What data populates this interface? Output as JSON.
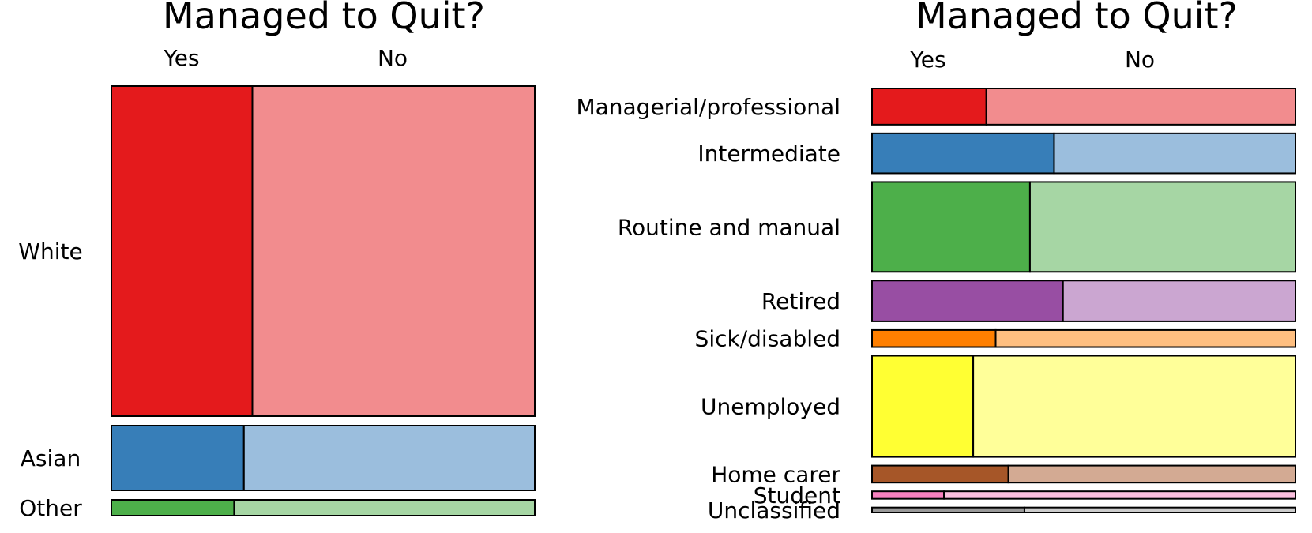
{
  "chart_data": [
    {
      "type": "mosaic",
      "title": "Managed to Quit?",
      "columns": [
        "Yes",
        "No"
      ],
      "rows": [
        {
          "label": "White",
          "share": 0.836,
          "yes_fraction": 0.333,
          "colors": [
            "#e41a1c",
            "#f28c8e"
          ]
        },
        {
          "label": "Asian",
          "share": 0.164,
          "yes_fraction": 0.313,
          "colors": [
            "#377eb8",
            "#9bbedd"
          ]
        },
        {
          "label": "Other",
          "share": 0.04,
          "yes_fraction": 0.29,
          "colors": [
            "#4daf4a",
            "#a6d6a4"
          ]
        }
      ]
    },
    {
      "type": "mosaic",
      "title": "Managed to Quit?",
      "columns": [
        "Yes",
        "No"
      ],
      "rows": [
        {
          "label": "Managerial/professional",
          "share": 0.087,
          "yes_fraction": 0.27,
          "colors": [
            "#e41a1c",
            "#f28c8e"
          ]
        },
        {
          "label": "Intermediate",
          "share": 0.096,
          "yes_fraction": 0.43,
          "colors": [
            "#377eb8",
            "#9bbedd"
          ]
        },
        {
          "label": "Routine and manual",
          "share": 0.216,
          "yes_fraction": 0.373,
          "colors": [
            "#4daf4a",
            "#a6d6a4"
          ]
        },
        {
          "label": "Retired",
          "share": 0.098,
          "yes_fraction": 0.451,
          "colors": [
            "#984ea3",
            "#cba6d1"
          ]
        },
        {
          "label": "Sick/disabled",
          "share": 0.041,
          "yes_fraction": 0.292,
          "colors": [
            "#ff7f00",
            "#ffbf80"
          ]
        },
        {
          "label": "Unemployed",
          "share": 0.243,
          "yes_fraction": 0.239,
          "colors": [
            "#ffff33",
            "#ffff99"
          ]
        },
        {
          "label": "Home carer",
          "share": 0.041,
          "yes_fraction": 0.322,
          "colors": [
            "#a65628",
            "#d3aa93"
          ]
        },
        {
          "label": "Student",
          "share": 0.018,
          "yes_fraction": 0.17,
          "colors": [
            "#f781bf",
            "#fbc0df"
          ]
        },
        {
          "label": "Unclassified",
          "share": 0.012,
          "yes_fraction": 0.36,
          "colors": [
            "#999999",
            "#cccccc"
          ]
        }
      ]
    }
  ]
}
